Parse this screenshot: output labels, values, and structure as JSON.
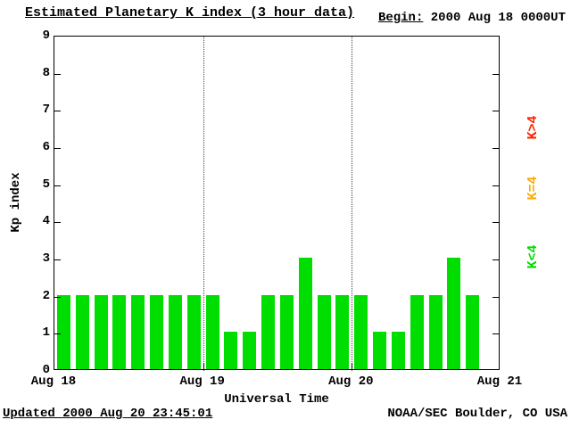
{
  "title": "Estimated Planetary K index (3 hour data)",
  "begin": {
    "prefix": "Begin:",
    "value": " 2000 Aug 18 0000UT"
  },
  "updated": "Updated 2000 Aug 20 23:45:01",
  "credit": "NOAA/SEC Boulder, CO USA",
  "legend": [
    {
      "label": "K>4",
      "color": "#ff2200"
    },
    {
      "label": "K=4",
      "color": "#ffaa00"
    },
    {
      "label": "K<4",
      "color": "#00dd00"
    }
  ],
  "chart_data": {
    "type": "bar",
    "title": "Estimated Planetary K index (3 hour data)",
    "xlabel": "Universal Time",
    "ylabel": "Kp index",
    "ylim": [
      0,
      9
    ],
    "y_ticks": [
      0,
      1,
      2,
      3,
      4,
      5,
      6,
      7,
      8,
      9
    ],
    "x_ticks": [
      "Aug 18",
      "Aug 19",
      "Aug 20",
      "Aug 21"
    ],
    "interval_hours": 3,
    "slots_per_day": 8,
    "bar_color": "#00dd00",
    "grid": "dotted-day-separators",
    "legend_position": "right",
    "values": [
      2,
      2,
      2,
      2,
      2,
      2,
      2,
      2,
      2,
      1,
      1,
      2,
      2,
      3,
      2,
      2,
      2,
      1,
      1,
      2,
      2,
      3,
      2
    ]
  }
}
